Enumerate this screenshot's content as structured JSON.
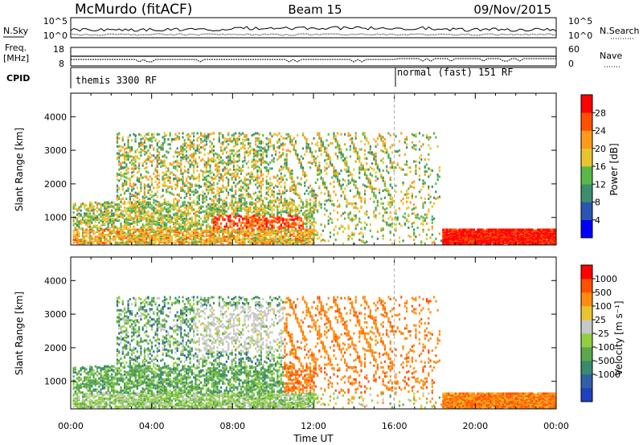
{
  "header": {
    "station": "McMurdo (fitACF)",
    "beam": "Beam 15",
    "date": "09/Nov/2015"
  },
  "params": {
    "nsky_label": "N.Sky",
    "nsearch_label": "N.Search",
    "nsky_ticks": [
      "10^5",
      "10^0"
    ],
    "freq_label_line1": "Freq.",
    "freq_label_line2": "[MHz]",
    "freq_ticks": [
      "18",
      "8"
    ],
    "nave_label": "Nave",
    "nave_ticks": [
      "60",
      "0"
    ],
    "cpid_label": "CPID",
    "cpid_modes": [
      {
        "name": "themis 3300 RF",
        "start_hour": 0
      },
      {
        "name": "normal (fast) 151 RF",
        "start_hour": 16
      }
    ]
  },
  "chart_data": [
    {
      "type": "heatmap",
      "title": "Power",
      "xlabel": "Time UT",
      "ylabel": "Slant Range [km]",
      "x_ticks": [
        "00:00",
        "04:00",
        "08:00",
        "12:00",
        "16:00",
        "20:00",
        "00:00"
      ],
      "xlim_hours": [
        0,
        24
      ],
      "y_ticks": [
        1000,
        2000,
        3000,
        4000
      ],
      "ylim_km": [
        180,
        4700
      ],
      "colorbar": {
        "label": "Power [dB]",
        "ticks": [
          "4",
          "8",
          "12",
          "16",
          "20",
          "24",
          "28"
        ],
        "colors": [
          "#0000ff",
          "#2a55b0",
          "#3b8f6f",
          "#58b848",
          "#e8c530",
          "#ff9a1a",
          "#ff5000",
          "#ff0000"
        ]
      },
      "features": [
        {
          "desc": "strong backscatter near range",
          "time_hours": [
            18.3,
            24.0
          ],
          "range_km": [
            250,
            700
          ],
          "level_db": 28
        },
        {
          "desc": "echo band",
          "time_hours": [
            7.5,
            11.5
          ],
          "range_km": [
            300,
            1300
          ],
          "level_db": 22
        },
        {
          "desc": "high-range patchy echoes",
          "time_hours": [
            2.5,
            10.5
          ],
          "range_km": [
            2000,
            3500
          ],
          "level_db": 12
        }
      ]
    },
    {
      "type": "heatmap",
      "title": "Velocity",
      "xlabel": "Time UT",
      "ylabel": "Slant Range [km]",
      "x_ticks": [
        "00:00",
        "04:00",
        "08:00",
        "12:00",
        "16:00",
        "20:00",
        "00:00"
      ],
      "xlim_hours": [
        0,
        24
      ],
      "y_ticks": [
        1000,
        2000,
        3000,
        4000
      ],
      "ylim_km": [
        180,
        4700
      ],
      "colorbar": {
        "label": "Velocity [m s⁻¹]",
        "ticks": [
          "1000",
          "500",
          "100",
          "25",
          "-25",
          "-100",
          "-500",
          "-1000"
        ],
        "colors": [
          "#2040c0",
          "#3060a8",
          "#3a8a6e",
          "#5aa84a",
          "#90d040",
          "#c8c8c8",
          "#e8c530",
          "#ff8c10",
          "#ff5000",
          "#ff0000"
        ]
      },
      "features": [
        {
          "desc": "orange (negative) velocity streaks",
          "time_hours": [
            10.5,
            16.0
          ],
          "range_km": [
            500,
            3000
          ],
          "velocity": -300
        },
        {
          "desc": "grey ground scatter",
          "time_hours": [
            6.0,
            12.0
          ],
          "range_km": [
            2000,
            3300
          ],
          "velocity": 0
        },
        {
          "desc": "green low-range echoes",
          "time_hours": [
            0.0,
            8.0
          ],
          "range_km": [
            300,
            1000
          ],
          "velocity": 50
        }
      ]
    }
  ]
}
